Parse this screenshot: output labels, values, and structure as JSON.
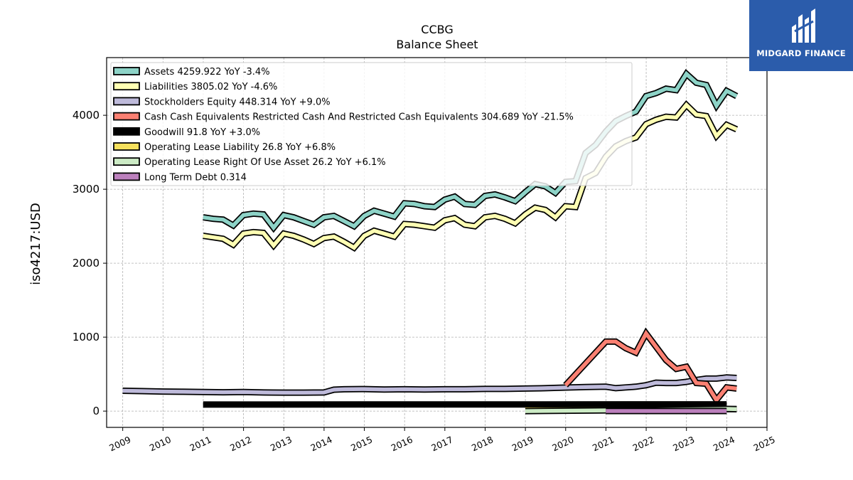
{
  "chart_data": {
    "type": "line",
    "title": "CCBG",
    "subtitle": "Balance  Sheet",
    "ylabel": "iso4217:USD",
    "xlabel": "",
    "xlim": [
      2008.6,
      2025.0
    ],
    "ylim": [
      -220,
      4780
    ],
    "x_ticks": [
      "2009",
      "2010",
      "2011",
      "2012",
      "2013",
      "2014",
      "2015",
      "2016",
      "2017",
      "2018",
      "2019",
      "2020",
      "2021",
      "2022",
      "2023",
      "2024",
      "2025"
    ],
    "y_ticks": [
      0,
      1000,
      2000,
      3000,
      4000
    ],
    "grid": true,
    "legend_position": "top-left",
    "series": [
      {
        "name": "Assets",
        "legend": "Assets  4259.922 YoY -3.4%",
        "color": "#8dd3c7",
        "x": [
          "2010-12-31",
          "2011-03-31",
          "2011-06-30",
          "2011-09-30",
          "2011-12-31",
          "2012-03-31",
          "2012-06-30",
          "2012-09-30",
          "2012-12-31",
          "2013-03-31",
          "2013-06-30",
          "2013-09-30",
          "2013-12-31",
          "2014-03-31",
          "2014-06-30",
          "2014-09-30",
          "2014-12-31",
          "2015-03-31",
          "2015-06-30",
          "2015-09-30",
          "2015-12-31",
          "2016-03-31",
          "2016-06-30",
          "2016-09-30",
          "2016-12-31",
          "2017-03-31",
          "2017-06-30",
          "2017-09-30",
          "2017-12-31",
          "2018-03-31",
          "2018-06-30",
          "2018-09-30",
          "2018-12-31",
          "2019-03-31",
          "2019-06-30",
          "2019-09-30",
          "2019-12-31",
          "2020-03-31",
          "2020-06-30",
          "2020-09-30",
          "2020-12-31",
          "2021-03-31",
          "2021-06-30",
          "2021-09-30",
          "2021-12-31",
          "2022-03-31",
          "2022-06-30",
          "2022-09-30",
          "2022-12-31",
          "2023-03-31",
          "2023-06-30",
          "2023-09-30",
          "2023-12-31",
          "2024-03-31"
        ],
        "y": [
          2620,
          2600,
          2590,
          2510,
          2650,
          2670,
          2660,
          2480,
          2650,
          2620,
          2570,
          2520,
          2620,
          2640,
          2570,
          2500,
          2640,
          2710,
          2670,
          2630,
          2810,
          2800,
          2770,
          2760,
          2860,
          2900,
          2800,
          2790,
          2910,
          2930,
          2890,
          2840,
          2960,
          3070,
          3040,
          2950,
          3100,
          3110,
          3490,
          3600,
          3780,
          3920,
          3990,
          4050,
          4260,
          4300,
          4360,
          4340,
          4560,
          4440,
          4410,
          4130,
          4330,
          4260
        ]
      },
      {
        "name": "Liabilities",
        "legend": "Liabilities  3805.02 YoY -4.6%",
        "color": "#ffffb3",
        "x": [
          "2010-12-31",
          "2011-03-31",
          "2011-06-30",
          "2011-09-30",
          "2011-12-31",
          "2012-03-31",
          "2012-06-30",
          "2012-09-30",
          "2012-12-31",
          "2013-03-31",
          "2013-06-30",
          "2013-09-30",
          "2013-12-31",
          "2014-03-31",
          "2014-06-30",
          "2014-09-30",
          "2014-12-31",
          "2015-03-31",
          "2015-06-30",
          "2015-09-30",
          "2015-12-31",
          "2016-03-31",
          "2016-06-30",
          "2016-09-30",
          "2016-12-31",
          "2017-03-31",
          "2017-06-30",
          "2017-09-30",
          "2017-12-31",
          "2018-03-31",
          "2018-06-30",
          "2018-09-30",
          "2018-12-31",
          "2019-03-31",
          "2019-06-30",
          "2019-09-30",
          "2019-12-31",
          "2020-03-31",
          "2020-06-30",
          "2020-09-30",
          "2020-12-31",
          "2021-03-31",
          "2021-06-30",
          "2021-09-30",
          "2021-12-31",
          "2022-03-31",
          "2022-06-30",
          "2022-09-30",
          "2022-12-31",
          "2023-03-31",
          "2023-06-30",
          "2023-09-30",
          "2023-12-31",
          "2024-03-31"
        ],
        "y": [
          2370,
          2350,
          2330,
          2250,
          2400,
          2420,
          2410,
          2240,
          2400,
          2370,
          2320,
          2260,
          2340,
          2360,
          2290,
          2210,
          2370,
          2440,
          2400,
          2360,
          2530,
          2520,
          2500,
          2480,
          2580,
          2610,
          2520,
          2500,
          2620,
          2640,
          2600,
          2540,
          2660,
          2750,
          2720,
          2620,
          2770,
          2760,
          3150,
          3220,
          3440,
          3580,
          3650,
          3700,
          3880,
          3940,
          3980,
          3970,
          4140,
          4010,
          3990,
          3720,
          3870,
          3810
        ]
      },
      {
        "name": "Stockholders Equity",
        "legend": "Stockholders Equity  448.314 YoY +9.0%",
        "color": "#bebada",
        "x": [
          "2008-12-31",
          "2009-06-30",
          "2009-12-31",
          "2010-06-30",
          "2010-12-31",
          "2011-06-30",
          "2011-12-31",
          "2012-06-30",
          "2012-12-31",
          "2013-06-30",
          "2013-12-31",
          "2014-03-31",
          "2014-06-30",
          "2014-12-31",
          "2015-06-30",
          "2015-12-31",
          "2016-06-30",
          "2016-12-31",
          "2017-06-30",
          "2017-12-31",
          "2018-06-30",
          "2018-12-31",
          "2019-06-30",
          "2019-12-31",
          "2020-06-30",
          "2020-12-31",
          "2021-03-31",
          "2021-06-30",
          "2021-09-30",
          "2021-12-31",
          "2022-03-31",
          "2022-06-30",
          "2022-09-30",
          "2022-12-31",
          "2023-03-31",
          "2023-06-30",
          "2023-09-30",
          "2023-12-31",
          "2024-03-31"
        ],
        "y": [
          275,
          270,
          265,
          262,
          258,
          255,
          258,
          252,
          250,
          250,
          252,
          290,
          295,
          298,
          292,
          295,
          292,
          295,
          295,
          300,
          300,
          305,
          310,
          318,
          325,
          330,
          310,
          320,
          330,
          350,
          385,
          380,
          380,
          395,
          420,
          440,
          440,
          455,
          448
        ]
      },
      {
        "name": "Cash Cash Equivalents Restricted Cash And Restricted Cash Equivalents",
        "legend": "Cash Cash Equivalents Restricted Cash And Restricted Cash Equivalents  304.689 YoY -21.5%",
        "color": "#fb8072",
        "x": [
          "2019-12-31",
          "2020-12-31",
          "2021-03-31",
          "2021-06-30",
          "2021-09-30",
          "2021-12-31",
          "2022-03-31",
          "2022-06-30",
          "2022-09-30",
          "2022-12-31",
          "2023-03-31",
          "2023-06-30",
          "2023-09-30",
          "2023-12-31",
          "2024-03-31"
        ],
        "y": [
          350,
          940,
          940,
          850,
          790,
          1050,
          870,
          690,
          570,
          600,
          380,
          370,
          150,
          320,
          305
        ]
      },
      {
        "name": "Goodwill",
        "legend": "Goodwill  91.8 YoY +3.0%",
        "color": "#000000",
        "x": [
          "2010-12-31",
          "2023-12-31"
        ],
        "y": [
          89,
          92
        ]
      },
      {
        "name": "Operating Lease Liability",
        "legend": "Operating Lease Liability  26.8 YoY +6.8%",
        "color": "#f5e05c",
        "x": [
          "2018-12-31",
          "2024-03-31"
        ],
        "y": [
          22,
          27
        ]
      },
      {
        "name": "Operating Lease Right Of Use Asset",
        "legend": "Operating Lease Right Of Use Asset  26.2 YoY +6.1%",
        "color": "#ccebc5",
        "x": [
          "2018-12-31",
          "2020-12-31",
          "2023-12-31",
          "2024-03-31"
        ],
        "y": [
          0,
          10,
          30,
          26
        ]
      },
      {
        "name": "Long Term Debt",
        "legend": "Long Term Debt  0.314",
        "color": "#bc80bd",
        "x": [
          "2020-12-31",
          "2023-12-31"
        ],
        "y": [
          1,
          1
        ]
      }
    ]
  },
  "logo": {
    "text": "MIDGARD FINANCE",
    "bg_color": "#2b5cab"
  }
}
